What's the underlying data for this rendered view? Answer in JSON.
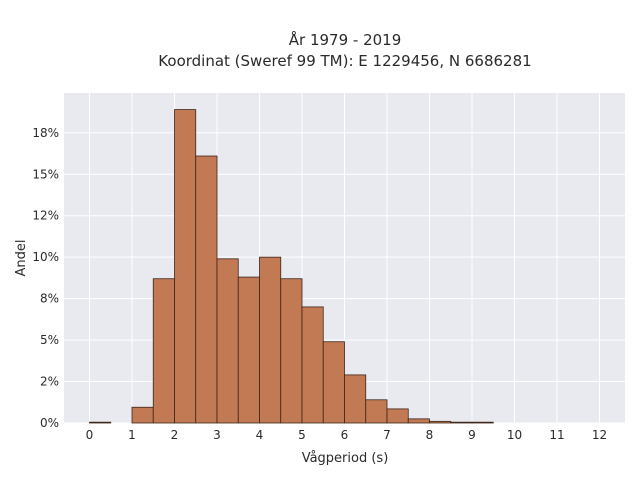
{
  "chart_data": {
    "type": "bar",
    "title_line1": "År 1979 - 2019",
    "title_line2": "Koordinat (Sweref 99 TM): E 1229456, N 6686281",
    "xlabel": "Vågperiod (s)",
    "ylabel": "Andel",
    "bin_width": 0.5,
    "xlim": [
      -0.6,
      12.6
    ],
    "ylim": [
      0,
      19.9
    ],
    "x_ticks": [
      0,
      1,
      2,
      3,
      4,
      5,
      6,
      7,
      8,
      9,
      10,
      11,
      12
    ],
    "x_tick_labels": [
      "0",
      "1",
      "2",
      "3",
      "4",
      "5",
      "6",
      "7",
      "8",
      "9",
      "10",
      "11",
      "12"
    ],
    "y_ticks": [
      0,
      2.5,
      5,
      7.5,
      10,
      12.5,
      15,
      17.5
    ],
    "y_tick_labels": [
      "0%",
      "2%",
      "5%",
      "8%",
      "10%",
      "12%",
      "15%",
      "18%"
    ],
    "bins_start": [
      0,
      0.5,
      1,
      1.5,
      2,
      2.5,
      3,
      3.5,
      4,
      4.5,
      5,
      5.5,
      6,
      6.5,
      7,
      7.5,
      8,
      8.5,
      9
    ],
    "values": [
      0.05,
      0,
      0.95,
      8.7,
      18.9,
      16.1,
      9.9,
      8.8,
      10.0,
      8.7,
      7.0,
      4.9,
      2.9,
      1.4,
      0.85,
      0.25,
      0.1,
      0.05,
      0.05
    ],
    "grid": true,
    "colors": {
      "bar_fill": "#c27a55",
      "bar_edge": "#3d2518",
      "plot_bg": "#e9e9f0",
      "grid": "#ffffff"
    }
  }
}
